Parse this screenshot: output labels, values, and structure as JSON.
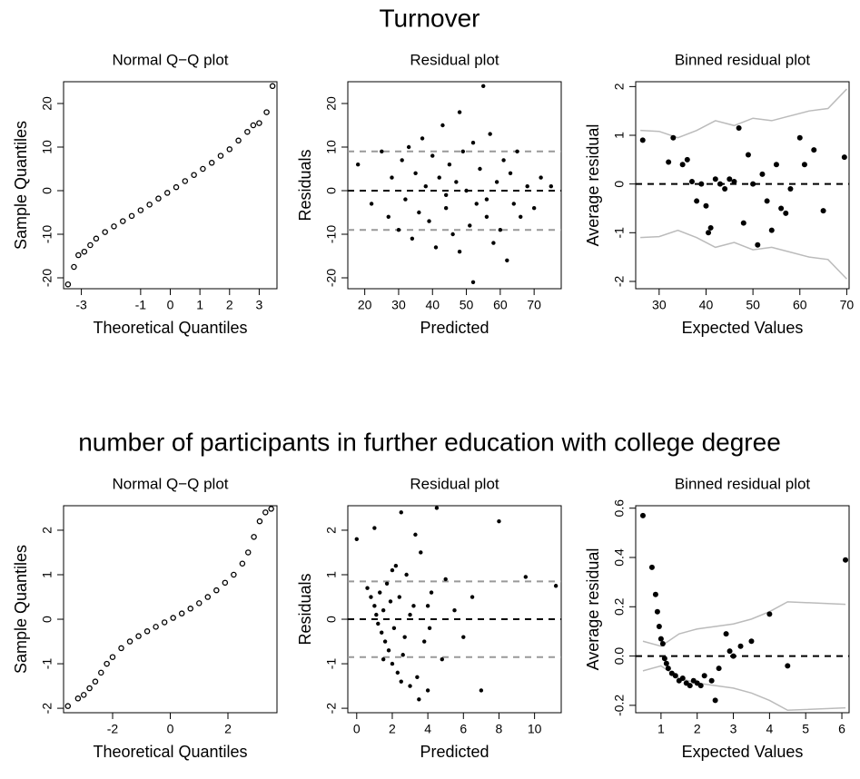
{
  "chart_data": [
    {
      "type": "qq",
      "suptitle": "Turnover",
      "title": "Normal Q−Q plot",
      "xlabel": "Theoretical Quantiles",
      "ylabel": "Sample Quantiles",
      "marker": "open",
      "xlim": [
        -3.6,
        3.6
      ],
      "ylim": [
        -22.5,
        25
      ],
      "xticks": [
        -3,
        -1,
        0,
        1,
        2,
        3
      ],
      "yticks": [
        -20,
        -10,
        0,
        10,
        20
      ],
      "x": [
        -3.45,
        -3.25,
        -3.1,
        -2.9,
        -2.7,
        -2.5,
        -2.2,
        -1.9,
        -1.6,
        -1.3,
        -1,
        -0.7,
        -0.4,
        -0.1,
        0.2,
        0.5,
        0.8,
        1.1,
        1.4,
        1.7,
        2,
        2.3,
        2.6,
        2.8,
        3.0,
        3.25,
        3.45
      ],
      "values": [
        -21.5,
        -17.5,
        -14.8,
        -14,
        -12.5,
        -11,
        -9.5,
        -8.2,
        -7,
        -5.8,
        -4.5,
        -3.2,
        -1.8,
        -0.5,
        0.8,
        2.2,
        3.6,
        5,
        6.4,
        8,
        9.5,
        11.5,
        13.5,
        15,
        15.5,
        18,
        24
      ]
    },
    {
      "type": "residual",
      "title": "Residual plot",
      "xlabel": "Predicted",
      "ylabel": "Residuals",
      "marker": "filled",
      "xlim": [
        15,
        78
      ],
      "ylim": [
        -22.5,
        25
      ],
      "xticks": [
        20,
        30,
        40,
        50,
        60,
        70
      ],
      "yticks": [
        -20,
        -10,
        0,
        10,
        20
      ],
      "hlines": [
        {
          "value": 0,
          "color": "#000000"
        },
        {
          "value": 9,
          "color": "#999999"
        },
        {
          "value": -9,
          "color": "#999999"
        }
      ],
      "x": [
        18,
        22,
        25,
        27,
        28,
        30,
        31,
        32,
        33,
        34,
        35,
        36,
        37,
        38,
        39,
        40,
        41,
        42,
        43,
        44,
        45,
        46,
        47,
        48,
        49,
        50,
        51,
        52,
        53,
        54,
        55,
        56,
        57,
        58,
        59,
        60,
        61,
        62,
        63,
        64,
        65,
        66,
        68,
        70,
        72,
        75,
        44,
        48,
        52,
        56
      ],
      "values": [
        6,
        -3,
        9,
        -6,
        3,
        -9,
        7,
        -2,
        10,
        -11,
        4,
        -5,
        12,
        1,
        -7,
        8,
        -13,
        3,
        15,
        -4,
        6,
        -10,
        2,
        -14,
        9,
        0,
        -8,
        11,
        -3,
        5,
        24,
        -6,
        13,
        -12,
        2,
        -9,
        7,
        -16,
        4,
        -3,
        9,
        -6,
        1,
        -4,
        3,
        1,
        -1,
        18,
        -21,
        -2
      ]
    },
    {
      "type": "binned",
      "title": "Binned residual plot",
      "xlabel": "Expected Values",
      "ylabel": "Average residual",
      "marker": "filled",
      "xlim": [
        25,
        70.5
      ],
      "ylim": [
        -2.15,
        2.1
      ],
      "xticks": [
        30,
        40,
        50,
        60,
        70
      ],
      "yticks": [
        -2,
        -1,
        0,
        1,
        2
      ],
      "hlines": [
        {
          "value": 0,
          "color": "#000000"
        }
      ],
      "lines": [
        {
          "color": "#bbbbbb",
          "x": [
            26,
            30,
            34,
            38,
            42,
            46,
            50,
            54,
            58,
            62,
            66,
            70
          ],
          "values": [
            1.1,
            1.08,
            0.95,
            1.1,
            1.3,
            1.2,
            1.35,
            1.3,
            1.4,
            1.5,
            1.55,
            1.95
          ]
        },
        {
          "color": "#bbbbbb",
          "x": [
            26,
            30,
            34,
            38,
            42,
            46,
            50,
            54,
            58,
            62,
            66,
            70
          ],
          "values": [
            -1.1,
            -1.08,
            -0.95,
            -1.1,
            -1.3,
            -1.2,
            -1.35,
            -1.3,
            -1.4,
            -1.5,
            -1.55,
            -1.95
          ]
        }
      ],
      "x": [
        26.5,
        32,
        33,
        35,
        36,
        37,
        38,
        39,
        40,
        40.5,
        41,
        42,
        43,
        44,
        45,
        46,
        47,
        48,
        49,
        50,
        51,
        52,
        53,
        54,
        55,
        56,
        57,
        58,
        60,
        61,
        63,
        65,
        69.5
      ],
      "values": [
        0.9,
        0.45,
        0.95,
        0.4,
        0.5,
        0.05,
        -0.35,
        0,
        -0.45,
        -1,
        -0.9,
        0.1,
        0,
        -0.1,
        0.1,
        0.05,
        1.15,
        -0.8,
        0.6,
        0,
        -1.25,
        0.2,
        -0.35,
        -0.95,
        0.4,
        -0.5,
        -0.6,
        -0.1,
        0.95,
        0.4,
        0.7,
        -0.55,
        0.55
      ]
    },
    {
      "type": "qq",
      "suptitle": "number of participants in further education with college degree",
      "title": "Normal Q−Q plot",
      "xlabel": "Theoretical Quantiles",
      "ylabel": "Sample Quantiles",
      "marker": "open",
      "xlim": [
        -3.7,
        3.7
      ],
      "ylim": [
        -2.1,
        2.55
      ],
      "xticks": [
        -2,
        0,
        2
      ],
      "yticks": [
        -2,
        -1,
        0,
        1,
        2
      ],
      "x": [
        -3.55,
        -3.2,
        -3,
        -2.8,
        -2.6,
        -2.4,
        -2.2,
        -2,
        -1.7,
        -1.4,
        -1.1,
        -0.8,
        -0.5,
        -0.2,
        0.1,
        0.4,
        0.7,
        1,
        1.3,
        1.6,
        1.9,
        2.2,
        2.5,
        2.7,
        2.9,
        3.1,
        3.3,
        3.5
      ],
      "values": [
        -1.95,
        -1.78,
        -1.7,
        -1.55,
        -1.4,
        -1.2,
        -1.0,
        -0.85,
        -0.65,
        -0.5,
        -0.38,
        -0.27,
        -0.17,
        -0.07,
        0.03,
        0.13,
        0.24,
        0.36,
        0.5,
        0.65,
        0.82,
        1.0,
        1.25,
        1.5,
        1.85,
        2.2,
        2.4,
        2.48
      ]
    },
    {
      "type": "residual",
      "title": "Residual plot",
      "xlabel": "Predicted",
      "ylabel": "Residuals",
      "marker": "filled",
      "xlim": [
        -0.5,
        11.5
      ],
      "ylim": [
        -2.1,
        2.55
      ],
      "xticks": [
        0,
        2,
        4,
        6,
        8,
        10
      ],
      "yticks": [
        -2,
        -1,
        0,
        1,
        2
      ],
      "hlines": [
        {
          "value": 0,
          "color": "#000000"
        },
        {
          "value": 0.85,
          "color": "#999999"
        },
        {
          "value": -0.85,
          "color": "#999999"
        }
      ],
      "x": [
        0,
        0.6,
        0.8,
        1,
        1.1,
        1.2,
        1.3,
        1.4,
        1.5,
        1.6,
        1.7,
        1.8,
        1.9,
        2,
        2.1,
        2.2,
        2.3,
        2.4,
        2.5,
        2.6,
        2.8,
        3,
        3.2,
        3.4,
        3.6,
        3.8,
        4,
        4.2,
        4.5,
        4.8,
        5,
        5.5,
        6,
        6.5,
        7,
        8,
        9.5,
        11.2,
        1.5,
        2,
        2.5,
        3,
        3.5,
        4,
        1,
        2.7,
        3.3,
        4.1
      ],
      "values": [
        1.8,
        0.7,
        0.5,
        0.3,
        0.1,
        -0.1,
        0.6,
        -0.3,
        0.2,
        -0.5,
        0.8,
        -0.7,
        0.4,
        -1,
        -0.2,
        1.2,
        -1.2,
        0.5,
        2.4,
        -0.8,
        1,
        -1.5,
        0.3,
        -1.3,
        1.5,
        -0.5,
        -1.6,
        0.6,
        2.5,
        -0.9,
        0.9,
        0.2,
        -0.4,
        0.5,
        -1.6,
        2.2,
        0.95,
        0.75,
        -0.9,
        1.1,
        -1.4,
        0.1,
        -1.8,
        0.3,
        2.05,
        -0.4,
        1.9,
        -0.2
      ]
    },
    {
      "type": "binned",
      "title": "Binned residual plot",
      "xlabel": "Expected Values",
      "ylabel": "Average residual",
      "marker": "filled",
      "xlim": [
        0.3,
        6.2
      ],
      "ylim": [
        -0.23,
        0.61
      ],
      "xticks": [
        1,
        2,
        3,
        4,
        5,
        6
      ],
      "yticks": [
        -0.2,
        {
          "value": 0,
          "label": "0.0"
        },
        0.2,
        0.4,
        0.6
      ],
      "hlines": [
        {
          "value": 0,
          "color": "#000000"
        }
      ],
      "lines": [
        {
          "color": "#bbbbbb",
          "x": [
            0.5,
            1,
            1.5,
            2,
            2.5,
            3,
            3.5,
            4,
            4.5,
            6.1
          ],
          "values": [
            0.06,
            0.04,
            0.09,
            0.11,
            0.12,
            0.13,
            0.15,
            0.18,
            0.22,
            0.21
          ]
        },
        {
          "color": "#bbbbbb",
          "x": [
            0.5,
            1,
            1.5,
            2,
            2.5,
            3,
            3.5,
            4,
            4.5,
            6.1
          ],
          "values": [
            -0.06,
            -0.04,
            -0.09,
            -0.11,
            -0.12,
            -0.13,
            -0.15,
            -0.18,
            -0.22,
            -0.21
          ]
        }
      ],
      "x": [
        0.5,
        0.75,
        0.85,
        0.9,
        0.95,
        1.0,
        1.05,
        1.1,
        1.15,
        1.2,
        1.3,
        1.4,
        1.5,
        1.6,
        1.7,
        1.8,
        1.9,
        2.0,
        2.1,
        2.2,
        2.4,
        2.5,
        2.6,
        2.8,
        2.9,
        3.0,
        3.2,
        3.5,
        4.0,
        4.5,
        6.1
      ],
      "values": [
        0.57,
        0.36,
        0.25,
        0.18,
        0.12,
        0.07,
        0.05,
        -0.01,
        -0.03,
        -0.05,
        -0.07,
        -0.08,
        -0.1,
        -0.09,
        -0.11,
        -0.12,
        -0.1,
        -0.11,
        -0.12,
        -0.08,
        -0.1,
        -0.18,
        -0.05,
        0.09,
        0.02,
        0,
        0.04,
        0.06,
        0.17,
        -0.04,
        0.39
      ]
    }
  ]
}
